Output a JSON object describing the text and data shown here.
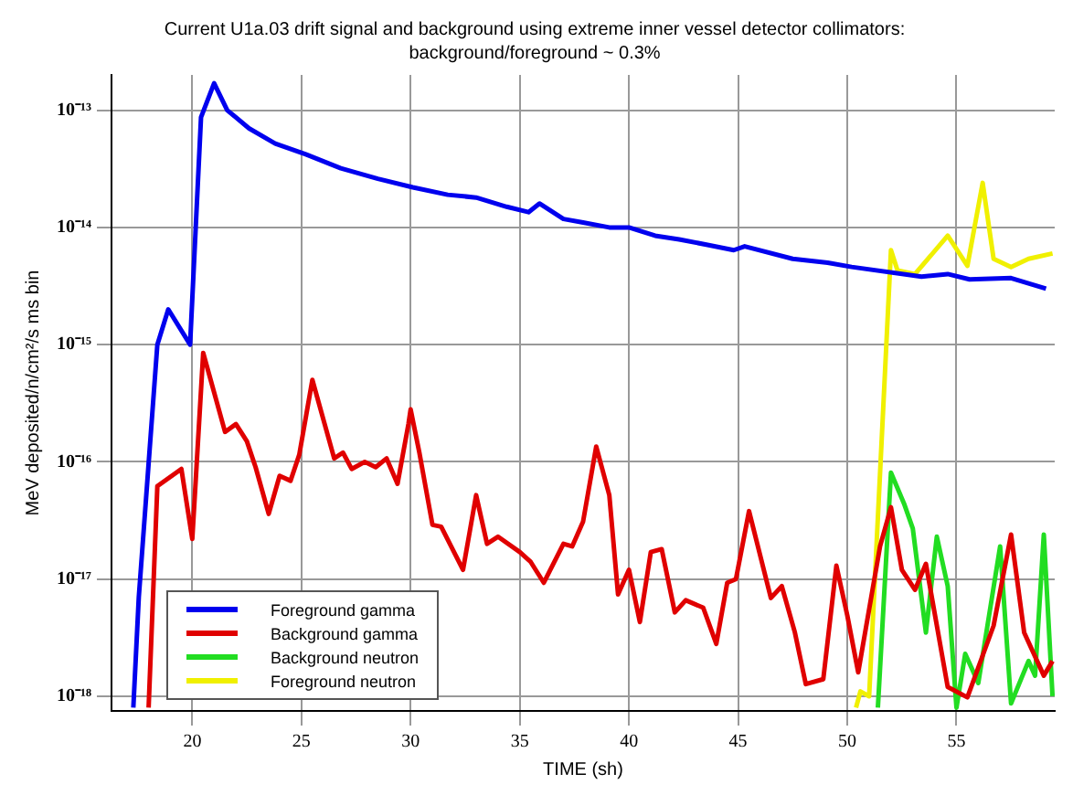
{
  "chart_data": {
    "type": "line",
    "title": "Current U1a.03 drift signal and background using extreme inner vessel detector collimators:",
    "subtitle": "background/foreground ~ 0.3%",
    "xlabel": "TIME (sh)",
    "ylabel": "MeV deposited/n/cm²/s ms bin",
    "log": "y",
    "grid": true,
    "legend": "bottom left",
    "line_style": "solid",
    "xlim": [
      16.3,
      59.5
    ],
    "xticks": [
      20,
      25,
      30,
      35,
      40,
      45,
      50,
      55
    ],
    "ylim": [
      7.5e-19,
      2e-13
    ],
    "yticks": [
      {
        "value": 1e-18,
        "label": "10⁻¹⁸"
      },
      {
        "value": 1e-17,
        "label": "10⁻¹⁷"
      },
      {
        "value": 1e-16,
        "label": "10⁻¹⁶"
      },
      {
        "value": 1e-15,
        "label": "10⁻¹⁵"
      },
      {
        "value": 1e-14,
        "label": "10⁻¹⁴"
      },
      {
        "value": 1e-13,
        "label": "10⁻¹³"
      }
    ],
    "series": [
      {
        "name": "Foreground gamma",
        "color": "#0000ee",
        "x": [
          17.3,
          17.55,
          18.4,
          18.9,
          19.9,
          20.4,
          21.0,
          21.6,
          22.6,
          23.8,
          25.2,
          26.8,
          28.5,
          30.1,
          31.7,
          33.0,
          34.4,
          35.4,
          35.9,
          37.0,
          37.9,
          39.1,
          40.0,
          41.2,
          42.3,
          43.6,
          44.8,
          45.3,
          47.5,
          49.1,
          50.2,
          53.4,
          54.6,
          55.6,
          57.5,
          59.1
        ],
        "values": [
          8e-19,
          7e-18,
          1e-15,
          2e-15,
          1e-15,
          8.7e-14,
          1.7e-13,
          1e-13,
          7e-14,
          5.2e-14,
          4.2e-14,
          3.2e-14,
          2.6e-14,
          2.2e-14,
          1.9e-14,
          1.8e-14,
          1.5e-14,
          1.35e-14,
          1.6e-14,
          1.18e-14,
          1.1e-14,
          1e-14,
          1e-14,
          8.5e-15,
          7.9e-15,
          7.1e-15,
          6.4e-15,
          6.9e-15,
          5.4e-15,
          5e-15,
          4.6e-15,
          3.8e-15,
          4e-15,
          3.6e-15,
          3.7e-15,
          3e-15
        ]
      },
      {
        "name": "Background gamma",
        "color": "#e00000",
        "x": [
          18.0,
          18.4,
          19.5,
          20.0,
          20.5,
          21.5,
          22.0,
          22.5,
          22.9,
          23.5,
          24.0,
          24.5,
          24.9,
          25.5,
          26.5,
          26.9,
          27.3,
          27.9,
          28.4,
          28.9,
          29.4,
          29.9,
          30.0,
          30.4,
          31.0,
          31.4,
          32.4,
          33.0,
          33.5,
          34.0,
          35.0,
          35.5,
          36.1,
          37.0,
          37.4,
          37.9,
          38.5,
          39.1,
          39.5,
          40.0,
          40.5,
          41.0,
          41.5,
          42.1,
          42.6,
          43.4,
          44.0,
          44.5,
          44.9,
          45.5,
          46.5,
          47.0,
          47.6,
          48.1,
          48.9,
          49.5,
          50.0,
          50.5,
          51.5,
          52.0,
          52.5,
          53.1,
          53.6,
          54.6,
          55.5,
          56.7,
          57.5,
          58.1,
          59.0,
          59.4
        ],
        "values": [
          8e-19,
          6.2e-17,
          8.7e-17,
          2.2e-17,
          8.5e-16,
          1.8e-16,
          2.1e-16,
          1.5e-16,
          9e-17,
          3.6e-17,
          7.6e-17,
          6.9e-17,
          1.15e-16,
          5e-16,
          1.07e-16,
          1.2e-16,
          8.7e-17,
          1e-16,
          9e-17,
          1.07e-16,
          6.5e-17,
          2.1e-16,
          2.8e-16,
          1.2e-16,
          2.9e-17,
          2.8e-17,
          1.2e-17,
          5.2e-17,
          2e-17,
          2.3e-17,
          1.7e-17,
          1.4e-17,
          9.3e-18,
          2e-17,
          1.9e-17,
          3.1e-17,
          1.35e-16,
          5.2e-17,
          7.4e-18,
          1.2e-17,
          4.3e-18,
          1.7e-17,
          1.8e-17,
          5.2e-18,
          6.6e-18,
          5.7e-18,
          2.8e-18,
          9.3e-18,
          1e-17,
          3.8e-17,
          6.9e-18,
          8.7e-18,
          3.5e-18,
          1.27e-18,
          1.4e-18,
          1.3e-17,
          4.9e-18,
          1.6e-18,
          1.9e-17,
          4.1e-17,
          1.2e-17,
          8.1e-18,
          1.35e-17,
          1.2e-18,
          9.8e-19,
          4e-18,
          2.4e-17,
          3.5e-18,
          1.5e-18,
          2e-18
        ]
      },
      {
        "name": "Background neutron",
        "color": "#22dd22",
        "x": [
          51.4,
          52.0,
          52.6,
          53.0,
          53.6,
          54.1,
          54.6,
          55.0,
          55.4,
          56.0,
          57.0,
          57.5,
          58.3,
          58.6,
          59.0,
          59.4
        ],
        "values": [
          8e-19,
          8.1e-17,
          4.4e-17,
          2.7e-17,
          3.5e-18,
          2.3e-17,
          8.7e-18,
          8e-19,
          2.3e-18,
          1.3e-18,
          1.9e-17,
          8.7e-19,
          2e-18,
          1.5e-18,
          2.4e-17,
          1e-18
        ]
      },
      {
        "name": "Foreground neutron",
        "color": "#f0f000",
        "x": [
          50.4,
          50.6,
          51.0,
          52.0,
          52.3,
          53.1,
          54.6,
          55.5,
          56.2,
          56.7,
          57.5,
          58.3,
          59.4
        ],
        "values": [
          8e-19,
          1.1e-18,
          1e-18,
          6.4e-15,
          4.3e-15,
          4e-15,
          8.5e-15,
          4.7e-15,
          2.4e-14,
          5.4e-15,
          4.6e-15,
          5.4e-15,
          6e-15
        ]
      }
    ]
  }
}
